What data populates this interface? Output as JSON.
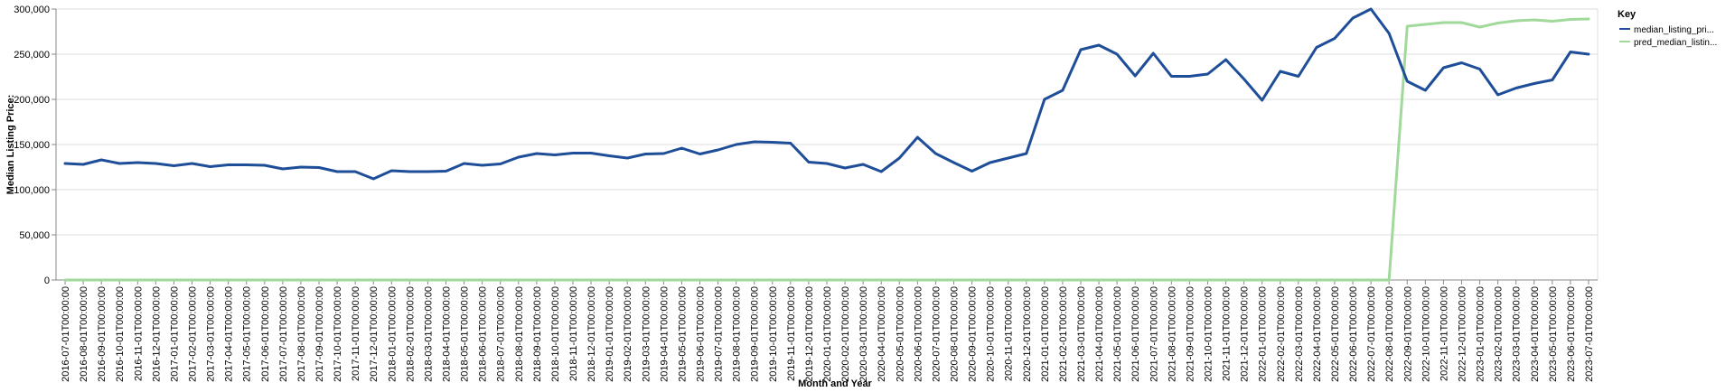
{
  "chart_data": {
    "type": "line",
    "xlabel": "Month and Year",
    "ylabel": "Median Listing Price:",
    "ylim": [
      0,
      300000
    ],
    "yticks": [
      0,
      50000,
      100000,
      150000,
      200000,
      250000,
      300000
    ],
    "ytick_labels": [
      "0",
      "50,000",
      "100,000",
      "150,000",
      "200,000",
      "250,000",
      "300,000"
    ],
    "grid": true,
    "legend": {
      "title": "Key",
      "placement": "right"
    },
    "x": [
      "2016-07-01T00:00:00",
      "2016-08-01T00:00:00",
      "2016-09-01T00:00:00",
      "2016-10-01T00:00:00",
      "2016-11-01T00:00:00",
      "2016-12-01T00:00:00",
      "2017-01-01T00:00:00",
      "2017-02-01T00:00:00",
      "2017-03-01T00:00:00",
      "2017-04-01T00:00:00",
      "2017-05-01T00:00:00",
      "2017-06-01T00:00:00",
      "2017-07-01T00:00:00",
      "2017-08-01T00:00:00",
      "2017-09-01T00:00:00",
      "2017-10-01T00:00:00",
      "2017-11-01T00:00:00",
      "2017-12-01T00:00:00",
      "2018-01-01T00:00:00",
      "2018-02-01T00:00:00",
      "2018-03-01T00:00:00",
      "2018-04-01T00:00:00",
      "2018-05-01T00:00:00",
      "2018-06-01T00:00:00",
      "2018-07-01T00:00:00",
      "2018-08-01T00:00:00",
      "2018-09-01T00:00:00",
      "2018-10-01T00:00:00",
      "2018-11-01T00:00:00",
      "2018-12-01T00:00:00",
      "2019-01-01T00:00:00",
      "2019-02-01T00:00:00",
      "2019-03-01T00:00:00",
      "2019-04-01T00:00:00",
      "2019-05-01T00:00:00",
      "2019-06-01T00:00:00",
      "2019-07-01T00:00:00",
      "2019-08-01T00:00:00",
      "2019-09-01T00:00:00",
      "2019-10-01T00:00:00",
      "2019-11-01T00:00:00",
      "2019-12-01T00:00:00",
      "2020-01-01T00:00:00",
      "2020-02-01T00:00:00",
      "2020-03-01T00:00:00",
      "2020-04-01T00:00:00",
      "2020-05-01T00:00:00",
      "2020-06-01T00:00:00",
      "2020-07-01T00:00:00",
      "2020-08-01T00:00:00",
      "2020-09-01T00:00:00",
      "2020-10-01T00:00:00",
      "2020-11-01T00:00:00",
      "2020-12-01T00:00:00",
      "2021-01-01T00:00:00",
      "2021-02-01T00:00:00",
      "2021-03-01T00:00:00",
      "2021-04-01T00:00:00",
      "2021-05-01T00:00:00",
      "2021-06-01T00:00:00",
      "2021-07-01T00:00:00",
      "2021-08-01T00:00:00",
      "2021-09-01T00:00:00",
      "2021-10-01T00:00:00",
      "2021-11-01T00:00:00",
      "2021-12-01T00:00:00",
      "2022-01-01T00:00:00",
      "2022-02-01T00:00:00",
      "2022-03-01T00:00:00",
      "2022-04-01T00:00:00",
      "2022-05-01T00:00:00",
      "2022-06-01T00:00:00",
      "2022-07-01T00:00:00",
      "2022-08-01T00:00:00",
      "2022-09-01T00:00:00",
      "2022-10-01T00:00:00",
      "2022-11-01T00:00:00",
      "2022-12-01T00:00:00",
      "2023-01-01T00:00:00",
      "2023-02-01T00:00:00",
      "2023-03-01T00:00:00",
      "2023-04-01T00:00:00",
      "2023-05-01T00:00:00",
      "2023-06-01T00:00:00",
      "2023-07-01T00:00:00"
    ],
    "series": [
      {
        "name": "median_listing_pri...",
        "color": "#1f4e99",
        "values": [
          129000,
          128000,
          133000,
          129000,
          130000,
          129000,
          126500,
          129000,
          125500,
          127500,
          127500,
          127000,
          123000,
          125000,
          124500,
          120000,
          120000,
          112000,
          121000,
          120000,
          120000,
          120500,
          129000,
          127000,
          128500,
          136000,
          140000,
          138500,
          140500,
          140500,
          137500,
          135000,
          139500,
          140000,
          146000,
          139500,
          144000,
          150000,
          153000,
          152500,
          151500,
          130500,
          129000,
          124000,
          128000,
          120000,
          135000,
          158000,
          140000,
          130000,
          120500,
          130000,
          135000,
          140000,
          200000,
          210000,
          255000,
          260000,
          250000,
          226000,
          251000,
          225500,
          225500,
          228000,
          244000,
          222500,
          199000,
          231000,
          225500,
          257500,
          267500,
          290000,
          300000,
          273000,
          220000,
          210000,
          235000,
          240500,
          233500,
          205000,
          212500,
          217500,
          221500,
          252500,
          250000
        ]
      },
      {
        "name": "pred_median_listin...",
        "color": "#a1d99b",
        "values": [
          0,
          0,
          0,
          0,
          0,
          0,
          0,
          0,
          0,
          0,
          0,
          0,
          0,
          0,
          0,
          0,
          0,
          0,
          0,
          0,
          0,
          0,
          0,
          0,
          0,
          0,
          0,
          0,
          0,
          0,
          0,
          0,
          0,
          0,
          0,
          0,
          0,
          0,
          0,
          0,
          0,
          0,
          0,
          0,
          0,
          0,
          0,
          0,
          0,
          0,
          0,
          0,
          0,
          0,
          0,
          0,
          0,
          0,
          0,
          0,
          0,
          0,
          0,
          0,
          0,
          0,
          0,
          0,
          0,
          0,
          0,
          0,
          0,
          0,
          281000,
          283000,
          285000,
          285000,
          280000,
          284500,
          287000,
          288000,
          286500,
          288500,
          289000
        ]
      }
    ]
  }
}
